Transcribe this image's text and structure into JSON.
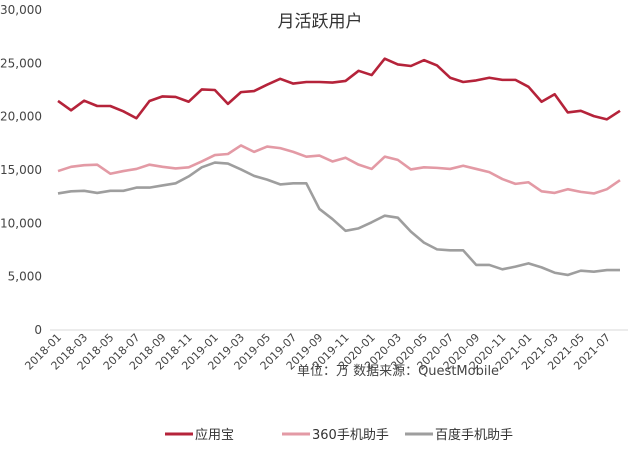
{
  "chart_data": {
    "type": "line",
    "title": "月活跃用户",
    "subtitle": "单位：万  数据来源：QuestMobile",
    "ylim": [
      0,
      30000
    ],
    "yticks": [
      0,
      5000,
      10000,
      15000,
      20000,
      25000,
      30000
    ],
    "ytick_labels": [
      "0",
      "5,000",
      "10,000",
      "15,000",
      "20,000",
      "25,000",
      "30,000"
    ],
    "grid": false,
    "legend_position": "bottom",
    "x": [
      "2018-01",
      "2018-02",
      "2018-03",
      "2018-04",
      "2018-05",
      "2018-06",
      "2018-07",
      "2018-08",
      "2018-09",
      "2018-10",
      "2018-11",
      "2018-12",
      "2019-01",
      "2019-02",
      "2019-03",
      "2019-04",
      "2019-05",
      "2019-06",
      "2019-07",
      "2019-08",
      "2019-09",
      "2019-10",
      "2019-11",
      "2019-12",
      "2020-01",
      "2020-02",
      "2020-03",
      "2020-04",
      "2020-05",
      "2020-06",
      "2020-07",
      "2020-08",
      "2020-09",
      "2020-10",
      "2020-11",
      "2020-12",
      "2021-01",
      "2021-02",
      "2021-03",
      "2021-04",
      "2021-05",
      "2021-06",
      "2021-07",
      "2021-08"
    ],
    "xtick_labels": [
      "2018-01",
      "2018-03",
      "2018-05",
      "2018-07",
      "2018-09",
      "2018-11",
      "2019-01",
      "2019-03",
      "2019-05",
      "2019-07",
      "2019-09",
      "2019-11",
      "2020-01",
      "2020-03",
      "2020-05",
      "2020-07",
      "2020-09",
      "2020-11",
      "2021-01",
      "2021-03",
      "2021-05",
      "2021-07"
    ],
    "series": [
      {
        "name": "应用宝",
        "color": "#b5233a",
        "values": [
          21470,
          20600,
          21500,
          21000,
          21000,
          20500,
          19850,
          21470,
          21900,
          21850,
          21400,
          22550,
          22500,
          21200,
          22300,
          22400,
          23000,
          23550,
          23100,
          23250,
          23250,
          23200,
          23350,
          24300,
          23900,
          25440,
          24900,
          24750,
          25300,
          24800,
          23650,
          23250,
          23400,
          23650,
          23450,
          23450,
          22800,
          21400,
          22100,
          20400,
          20550,
          20050,
          19750,
          20550
        ]
      },
      {
        "name": "360手机助手",
        "color": "#e39aa5",
        "values": [
          14900,
          15300,
          15450,
          15500,
          14650,
          14900,
          15100,
          15500,
          15300,
          15150,
          15250,
          15800,
          16400,
          16500,
          17300,
          16700,
          17200,
          17050,
          16700,
          16250,
          16350,
          15800,
          16150,
          15500,
          15100,
          16250,
          15950,
          15050,
          15250,
          15200,
          15100,
          15400,
          15100,
          14800,
          14150,
          13700,
          13850,
          13000,
          12850,
          13200,
          12950,
          12800,
          13200,
          14050
        ]
      },
      {
        "name": "百度手机助手",
        "color": "#9e9e9e",
        "values": [
          12800,
          13000,
          13050,
          12850,
          13050,
          13050,
          13350,
          13350,
          13550,
          13750,
          14400,
          15250,
          15700,
          15600,
          15050,
          14450,
          14100,
          13650,
          13750,
          13750,
          11350,
          10400,
          9300,
          9530,
          10100,
          10720,
          10530,
          9220,
          8190,
          7560,
          7470,
          7470,
          6100,
          6100,
          5690,
          5940,
          6250,
          5870,
          5370,
          5160,
          5560,
          5470,
          5620,
          5620
        ]
      }
    ]
  }
}
